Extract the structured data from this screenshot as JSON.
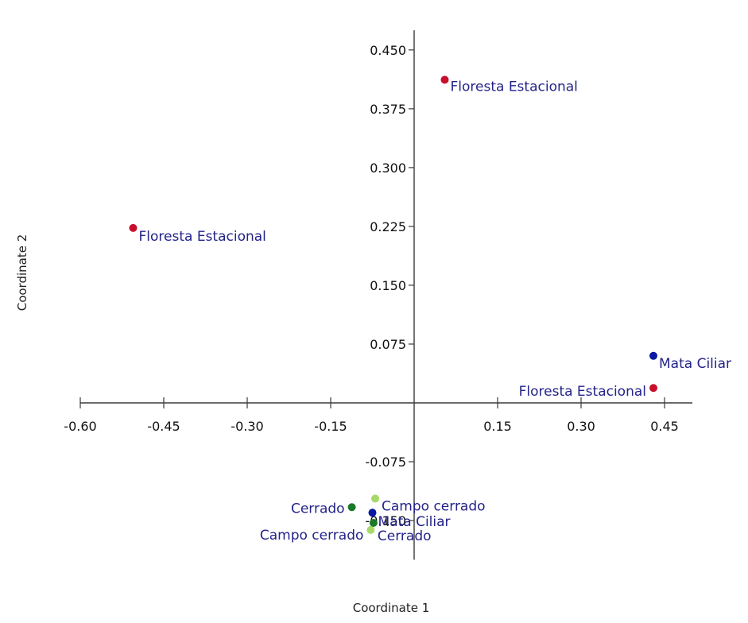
{
  "chart_data": {
    "type": "scatter",
    "title": "",
    "xlabel": "Coordinate 1",
    "ylabel": "Coordinate 2",
    "xlim": [
      -0.6,
      0.5
    ],
    "ylim": [
      -0.2,
      0.475
    ],
    "x_ticks": [
      "-0.60",
      "-0.45",
      "-0.30",
      "-0.15",
      "0.15",
      "0.30",
      "0.45"
    ],
    "x_tick_values": [
      -0.6,
      -0.45,
      -0.3,
      -0.15,
      0.15,
      0.3,
      0.45
    ],
    "y_ticks": [
      "0.450",
      "0.375",
      "0.300",
      "0.225",
      "0.150",
      "0.075",
      "-0.075",
      "-0.150"
    ],
    "y_tick_values": [
      0.45,
      0.375,
      0.3,
      0.225,
      0.15,
      0.075,
      -0.075,
      -0.15
    ],
    "grid": false,
    "legend": "none",
    "colors": {
      "axis": "#3a3a3a",
      "label_text": "#23238a",
      "floresta_estacional": "#c8102e",
      "mata_ciliar": "#0a1aa0",
      "campo_cerrado": "#a6d96a",
      "cerrado": "#1a7a28"
    },
    "points": [
      {
        "label": "Floresta Estacional",
        "group": "floresta_estacional",
        "x": 0.055,
        "y": 0.412
      },
      {
        "label": "Floresta Estacional",
        "group": "floresta_estacional",
        "x": -0.505,
        "y": 0.223
      },
      {
        "label": "Floresta Estacional",
        "group": "floresta_estacional",
        "x": 0.43,
        "y": 0.019
      },
      {
        "label": "Mata Ciliar",
        "group": "mata_ciliar",
        "x": 0.43,
        "y": 0.06
      },
      {
        "label": "Mata Ciliar",
        "group": "mata_ciliar",
        "x": -0.075,
        "y": -0.14
      },
      {
        "label": "Campo cerrado",
        "group": "campo_cerrado",
        "x": -0.07,
        "y": -0.122
      },
      {
        "label": "Campo cerrado",
        "group": "campo_cerrado",
        "x": -0.078,
        "y": -0.162
      },
      {
        "label": "Cerrado",
        "group": "cerrado",
        "x": -0.112,
        "y": -0.133
      },
      {
        "label": "Cerrado",
        "group": "cerrado",
        "x": -0.073,
        "y": -0.153
      }
    ]
  }
}
